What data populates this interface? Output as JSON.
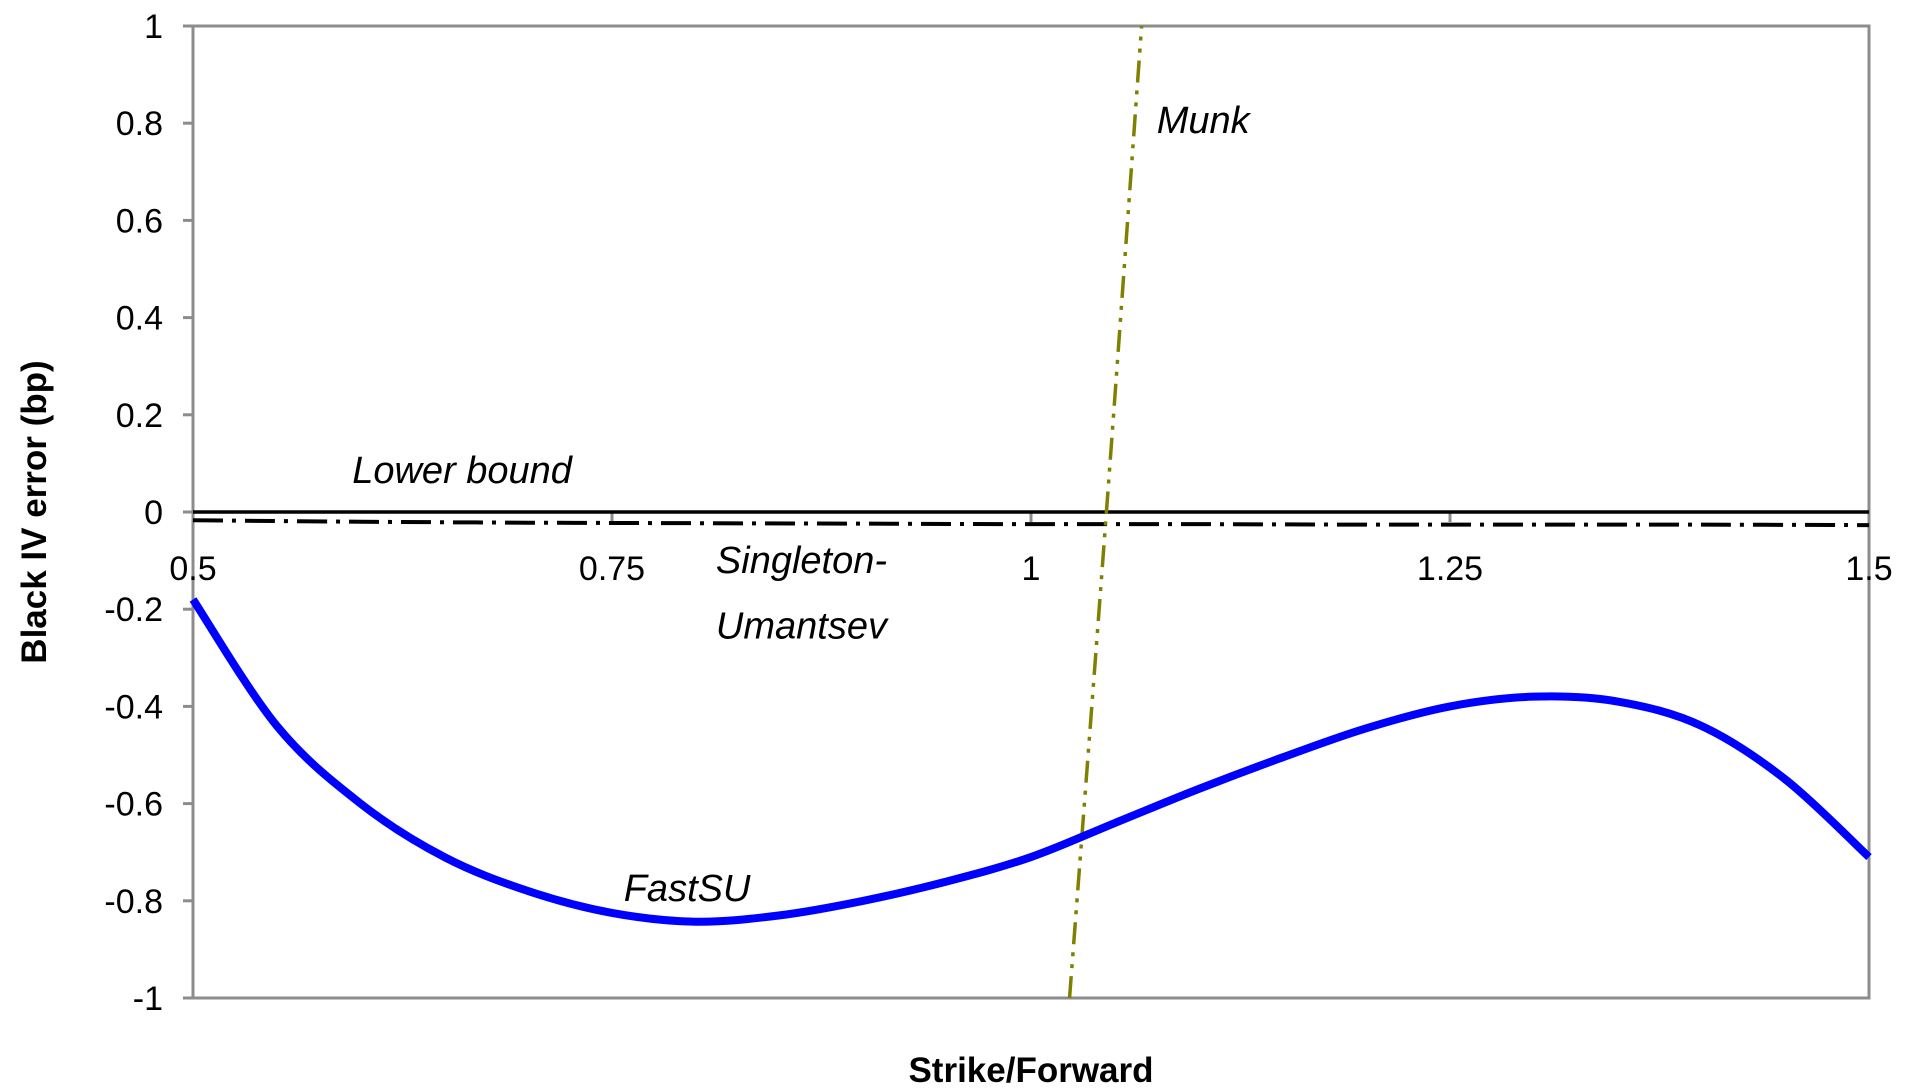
{
  "chart_data": {
    "type": "line",
    "title": "",
    "xlabel": "Strike/Forward",
    "ylabel": "Black IV error (bp)",
    "xlim": [
      0.5,
      1.5
    ],
    "ylim": [
      -1,
      1
    ],
    "x_ticks": [
      {
        "value": 0.5,
        "label": "0.5"
      },
      {
        "value": 0.75,
        "label": "0.75"
      },
      {
        "value": 1,
        "label": "1"
      },
      {
        "value": 1.25,
        "label": "1.25"
      },
      {
        "value": 1.5,
        "label": "1.5"
      }
    ],
    "y_ticks": [
      {
        "value": 1,
        "label": "1"
      },
      {
        "value": 0.8,
        "label": "0.8"
      },
      {
        "value": 0.6,
        "label": "0.6"
      },
      {
        "value": 0.4,
        "label": "0.4"
      },
      {
        "value": 0.2,
        "label": "0.2"
      },
      {
        "value": 0,
        "label": "0"
      },
      {
        "value": -0.2,
        "label": "-0.2"
      },
      {
        "value": -0.4,
        "label": "-0.4"
      },
      {
        "value": -0.6,
        "label": "-0.6"
      },
      {
        "value": -0.8,
        "label": "-0.8"
      },
      {
        "value": -1,
        "label": "-1"
      }
    ],
    "grid": false,
    "legend": "none",
    "series": [
      {
        "name": "Lower bound",
        "color": "#000000",
        "style": "solid",
        "x": [
          0.5,
          1.5
        ],
        "y": [
          0.0,
          0.0
        ]
      },
      {
        "name": "Singleton-Umantsev",
        "color": "#000000",
        "style": "dash-dot",
        "x": [
          0.5,
          0.6,
          0.7,
          0.8,
          0.9,
          1.0,
          1.1,
          1.2,
          1.3,
          1.4,
          1.5
        ],
        "y": [
          -0.017,
          -0.02,
          -0.022,
          -0.023,
          -0.024,
          -0.025,
          -0.025,
          -0.026,
          -0.026,
          -0.026,
          -0.027
        ]
      },
      {
        "name": "Munk",
        "color": "#808000",
        "style": "dash-dot-dot",
        "x": [
          1.023,
          1.045,
          1.066
        ],
        "y": [
          -1.0,
          0.0,
          1.0
        ]
      },
      {
        "name": "FastSU",
        "color": "#0000ff",
        "style": "solid-thick",
        "x": [
          0.5,
          0.55,
          0.6,
          0.65,
          0.7,
          0.75,
          0.8,
          0.85,
          0.9,
          0.95,
          1.0,
          1.05,
          1.1,
          1.15,
          1.2,
          1.25,
          1.3,
          1.35,
          1.4,
          1.45,
          1.5
        ],
        "y": [
          -0.18,
          -0.44,
          -0.6,
          -0.71,
          -0.78,
          -0.825,
          -0.843,
          -0.83,
          -0.8,
          -0.76,
          -0.71,
          -0.64,
          -0.57,
          -0.505,
          -0.445,
          -0.4,
          -0.38,
          -0.39,
          -0.44,
          -0.55,
          -0.71
        ]
      }
    ],
    "annotations": [
      {
        "text": "Lower bound",
        "x": 0.595,
        "y": 0.06
      },
      {
        "text": "Munk",
        "x": 1.075,
        "y": 0.78
      },
      {
        "text": "Singleton-",
        "x": 0.812,
        "y": -0.125
      },
      {
        "text": "Umantsev",
        "x": 0.812,
        "y": -0.26
      },
      {
        "text": "FastSU",
        "x": 0.757,
        "y": -0.8
      }
    ]
  }
}
